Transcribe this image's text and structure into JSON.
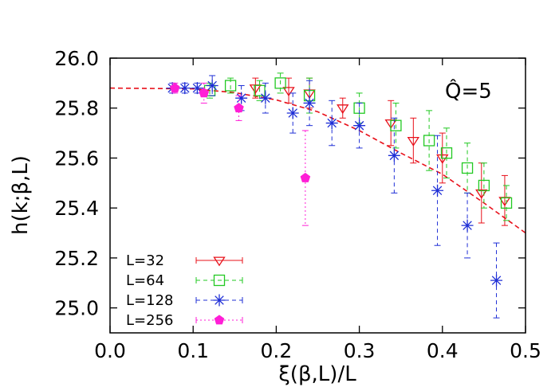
{
  "chart_data": {
    "type": "scatter",
    "title": "",
    "xlabel": "ξ(β,L)/L",
    "ylabel": "h(k;β,L)",
    "xlim": [
      0.0,
      0.5
    ],
    "ylim": [
      24.9,
      26.0
    ],
    "x_ticks": [
      "0.0",
      "0.1",
      "0.2",
      "0.3",
      "0.4",
      "0.5"
    ],
    "y_ticks": [
      "25.0",
      "25.2",
      "25.4",
      "25.6",
      "25.8",
      "26.0"
    ],
    "x_tick_values": [
      0.0,
      0.1,
      0.2,
      0.3,
      0.4,
      0.5
    ],
    "y_tick_values": [
      25.0,
      25.2,
      25.4,
      25.6,
      25.8,
      26.0
    ],
    "annotation": "Q̂=5",
    "legend_position": "bottom-left",
    "grid": false,
    "fit_curve": {
      "style": "dashed",
      "color": "#e8101a",
      "points": [
        [
          0.0,
          25.88
        ],
        [
          0.1,
          25.877
        ],
        [
          0.15,
          25.862
        ],
        [
          0.2,
          25.833
        ],
        [
          0.25,
          25.785
        ],
        [
          0.3,
          25.71
        ],
        [
          0.35,
          25.62
        ],
        [
          0.4,
          25.535
        ],
        [
          0.45,
          25.42
        ],
        [
          0.5,
          25.3
        ]
      ]
    },
    "series": [
      {
        "name": "L=32",
        "marker": "triangle-down",
        "color": "#e8101a",
        "line": "solid",
        "points": [
          {
            "x": 0.175,
            "y": 25.88,
            "err": 0.04
          },
          {
            "x": 0.215,
            "y": 25.87,
            "err": 0.05
          },
          {
            "x": 0.24,
            "y": 25.86,
            "err": 0.06
          },
          {
            "x": 0.28,
            "y": 25.8,
            "err": 0.04
          },
          {
            "x": 0.338,
            "y": 25.74,
            "err": 0.09
          },
          {
            "x": 0.365,
            "y": 25.67,
            "err": 0.09
          },
          {
            "x": 0.4,
            "y": 25.6,
            "err": 0.1
          },
          {
            "x": 0.447,
            "y": 25.46,
            "err": 0.12
          },
          {
            "x": 0.475,
            "y": 25.43,
            "err": 0.1
          }
        ]
      },
      {
        "name": "L=64",
        "marker": "square",
        "color": "#22c922",
        "line": "dash",
        "points": [
          {
            "x": 0.12,
            "y": 25.87,
            "err": 0.03
          },
          {
            "x": 0.145,
            "y": 25.89,
            "err": 0.03
          },
          {
            "x": 0.18,
            "y": 25.87,
            "err": 0.04
          },
          {
            "x": 0.205,
            "y": 25.9,
            "err": 0.04
          },
          {
            "x": 0.24,
            "y": 25.85,
            "err": 0.07
          },
          {
            "x": 0.3,
            "y": 25.8,
            "err": 0.06
          },
          {
            "x": 0.344,
            "y": 25.73,
            "err": 0.09
          },
          {
            "x": 0.384,
            "y": 25.67,
            "err": 0.12
          },
          {
            "x": 0.405,
            "y": 25.62,
            "err": 0.1
          },
          {
            "x": 0.43,
            "y": 25.56,
            "err": 0.1
          },
          {
            "x": 0.45,
            "y": 25.49,
            "err": 0.09
          },
          {
            "x": 0.477,
            "y": 25.42,
            "err": 0.07
          }
        ]
      },
      {
        "name": "L=128",
        "marker": "star",
        "color": "#1f2fd6",
        "line": "dash",
        "points": [
          {
            "x": 0.075,
            "y": 25.88,
            "err": 0.02
          },
          {
            "x": 0.09,
            "y": 25.88,
            "err": 0.02
          },
          {
            "x": 0.105,
            "y": 25.88,
            "err": 0.02
          },
          {
            "x": 0.123,
            "y": 25.89,
            "err": 0.04
          },
          {
            "x": 0.158,
            "y": 25.84,
            "err": 0.05
          },
          {
            "x": 0.187,
            "y": 25.84,
            "err": 0.06
          },
          {
            "x": 0.22,
            "y": 25.78,
            "err": 0.08
          },
          {
            "x": 0.24,
            "y": 25.82,
            "err": 0.09
          },
          {
            "x": 0.267,
            "y": 25.74,
            "err": 0.09
          },
          {
            "x": 0.3,
            "y": 25.73,
            "err": 0.09
          },
          {
            "x": 0.342,
            "y": 25.61,
            "err": 0.15
          },
          {
            "x": 0.394,
            "y": 25.47,
            "err": 0.22
          },
          {
            "x": 0.43,
            "y": 25.33,
            "err": 0.13
          },
          {
            "x": 0.465,
            "y": 25.11,
            "err": 0.15
          }
        ]
      },
      {
        "name": "L=256",
        "marker": "pentagon-filled",
        "color": "#ff1ed6",
        "line": "dot",
        "points": [
          {
            "x": 0.078,
            "y": 25.88,
            "err": 0.02
          },
          {
            "x": 0.113,
            "y": 25.86,
            "err": 0.04
          },
          {
            "x": 0.155,
            "y": 25.8,
            "err": 0.05
          },
          {
            "x": 0.235,
            "y": 25.52,
            "err": 0.19
          }
        ]
      }
    ]
  }
}
